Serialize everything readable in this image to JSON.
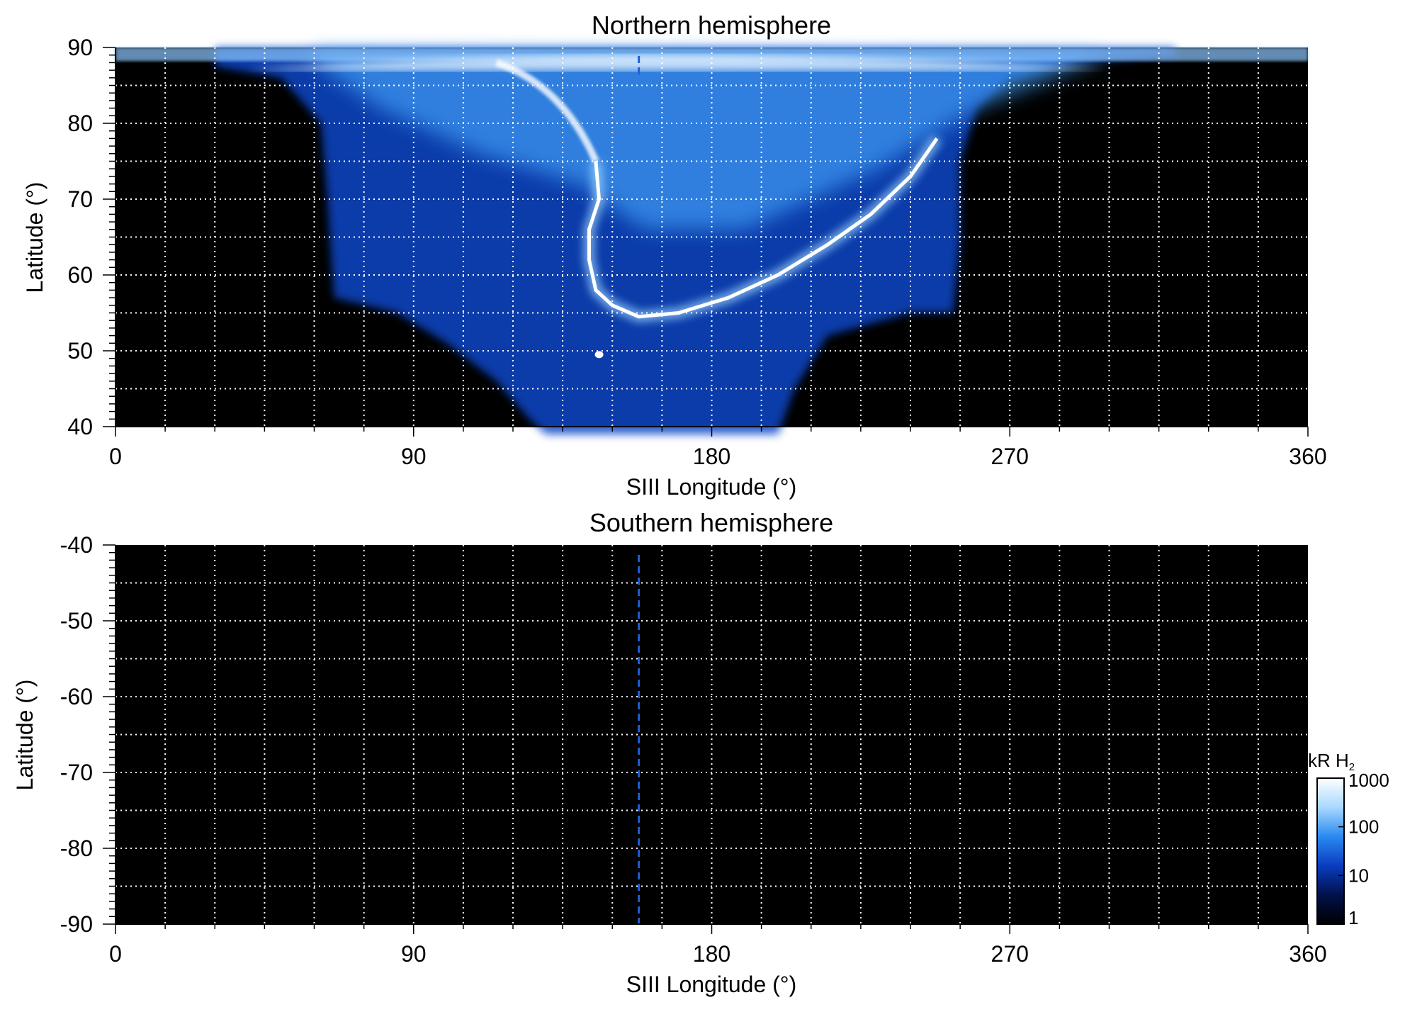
{
  "chart_data": [
    {
      "type": "heatmap",
      "title": "Northern hemisphere",
      "xlabel": "SIII Longitude (°)",
      "ylabel": "Latitude (°)",
      "xlim": [
        0,
        360
      ],
      "ylim": [
        40,
        90
      ],
      "xticks": [
        0,
        90,
        180,
        270,
        360
      ],
      "yticks": [
        40,
        50,
        60,
        70,
        80,
        90
      ],
      "grid": true,
      "grid_x_step": 15,
      "grid_y_step": 5,
      "marker_longitude": 158,
      "emission_region": {
        "lon_range": [
          30,
          320
        ],
        "lat_range": [
          39,
          90
        ],
        "main_oval": [
          [
            145,
            75
          ],
          [
            146,
            70
          ],
          [
            143,
            66
          ],
          [
            143,
            62
          ],
          [
            145,
            58
          ],
          [
            150,
            56
          ],
          [
            158,
            54.5
          ],
          [
            170,
            55
          ],
          [
            185,
            57
          ],
          [
            200,
            60
          ],
          [
            215,
            64
          ],
          [
            228,
            68
          ],
          [
            240,
            73
          ],
          [
            248,
            78
          ]
        ],
        "footprint_spot": [
          146,
          49.5
        ]
      }
    },
    {
      "type": "heatmap",
      "title": "Southern hemisphere",
      "xlabel": "SIII Longitude (°)",
      "ylabel": "Latitude (°)",
      "xlim": [
        0,
        360
      ],
      "ylim": [
        -90,
        -40
      ],
      "xticks": [
        0,
        90,
        180,
        270,
        360
      ],
      "yticks": [
        -40,
        -50,
        -60,
        -70,
        -80,
        -90
      ],
      "grid": true,
      "grid_x_step": 15,
      "grid_y_step": 5,
      "marker_longitude": 158,
      "emission_region": null
    }
  ],
  "colorbar": {
    "label": "kR H",
    "label_sub": "2",
    "scale": "log",
    "range": [
      1,
      1000
    ],
    "ticks": [
      "1000",
      "100",
      "10",
      "1"
    ],
    "colors": [
      "#000000",
      "#02114a",
      "#0a3cc0",
      "#2a8af0",
      "#a8d8ff",
      "#ffffff"
    ]
  }
}
